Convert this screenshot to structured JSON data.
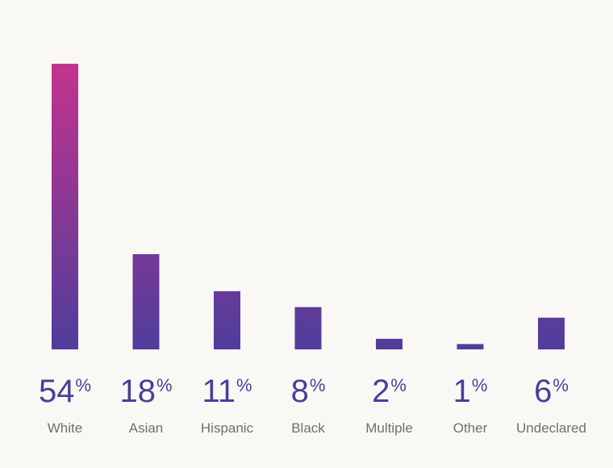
{
  "colors": {
    "background": "#f9f8f5",
    "bar_bottom": "#4f3d9c",
    "bar_top": "#c3338e",
    "value_text": "#4a3e97",
    "label_text": "#6f6f6f"
  },
  "chart_data": {
    "type": "bar",
    "categories": [
      "White",
      "Asian",
      "Hispanic",
      "Black",
      "Multiple",
      "Other",
      "Undeclared"
    ],
    "values": [
      54,
      18,
      11,
      8,
      2,
      1,
      6
    ],
    "value_labels": [
      "54",
      "18",
      "11",
      "8",
      "2",
      "1",
      "6"
    ],
    "value_suffix": "%",
    "title": "",
    "xlabel": "",
    "ylabel": "",
    "ylim": [
      0,
      54
    ],
    "grid": false,
    "legend": "none"
  }
}
